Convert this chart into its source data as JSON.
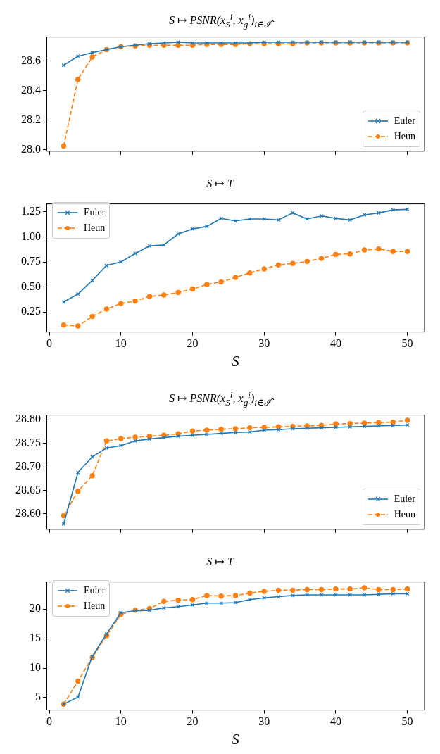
{
  "chart_data": [
    {
      "type": "line",
      "title": "S ↦ PSNR(x$_{S}$$^{i}$, x$_{g}$$^{i}$)$_{i∈ℐ̂}$",
      "x": [
        2,
        4,
        6,
        8,
        10,
        12,
        14,
        16,
        18,
        20,
        22,
        24,
        26,
        28,
        30,
        32,
        34,
        36,
        38,
        40,
        42,
        44,
        46,
        48,
        50
      ],
      "xlim": [
        -0.4,
        52.4
      ],
      "xticks": [
        0,
        10,
        20,
        30,
        40,
        50
      ],
      "ylim": [
        27.99,
        28.76
      ],
      "yticks": [
        {
          "value": 28.0,
          "label": "28.0"
        },
        {
          "value": 28.2,
          "label": "28.2"
        },
        {
          "value": 28.4,
          "label": "28.4"
        },
        {
          "value": 28.6,
          "label": "28.6"
        }
      ],
      "tick_labels": "y",
      "legend": "bottom right",
      "series": [
        {
          "name": "Euler",
          "color": "#1f77b4",
          "marker": "cross",
          "line_style": "solid",
          "values": [
            28.57,
            28.63,
            28.655,
            28.675,
            28.695,
            28.705,
            28.715,
            28.72,
            28.725,
            28.72,
            28.72,
            28.72,
            28.72,
            28.72,
            28.725,
            28.725,
            28.725,
            28.725,
            28.725,
            28.725,
            28.725,
            28.725,
            28.725,
            28.725,
            28.725
          ]
        },
        {
          "name": "Heun",
          "color": "#ff7f0e",
          "marker": "circle",
          "line_style": "dashed",
          "values": [
            28.025,
            28.475,
            28.625,
            28.675,
            28.695,
            28.7,
            28.705,
            28.705,
            28.705,
            28.705,
            28.71,
            28.71,
            28.71,
            28.715,
            28.715,
            28.715,
            28.715,
            28.72,
            28.72,
            28.72,
            28.72,
            28.72,
            28.72,
            28.72,
            28.72
          ]
        }
      ]
    },
    {
      "type": "line",
      "title": "S ↦ T",
      "xlabel": "S",
      "x": [
        2,
        4,
        6,
        8,
        10,
        12,
        14,
        16,
        18,
        20,
        22,
        24,
        26,
        28,
        30,
        32,
        34,
        36,
        38,
        40,
        42,
        44,
        46,
        48,
        50
      ],
      "xlim": [
        -0.4,
        52.4
      ],
      "xticks": [
        0,
        10,
        20,
        30,
        40,
        50
      ],
      "ylim": [
        0.05,
        1.33
      ],
      "yticks": [
        {
          "value": 0.25,
          "label": "0.25"
        },
        {
          "value": 0.5,
          "label": "0.50"
        },
        {
          "value": 0.75,
          "label": "0.75"
        },
        {
          "value": 1.0,
          "label": "1.00"
        },
        {
          "value": 1.25,
          "label": "1.25"
        }
      ],
      "legend": "top left",
      "series": [
        {
          "name": "Euler",
          "color": "#1f77b4",
          "marker": "cross",
          "line_style": "solid",
          "values": [
            0.35,
            0.43,
            0.565,
            0.715,
            0.75,
            0.835,
            0.91,
            0.92,
            1.03,
            1.08,
            1.105,
            1.185,
            1.16,
            1.18,
            1.18,
            1.17,
            1.24,
            1.18,
            1.21,
            1.185,
            1.17,
            1.22,
            1.24,
            1.27,
            1.275
          ]
        },
        {
          "name": "Heun",
          "color": "#ff7f0e",
          "marker": "circle",
          "line_style": "dashed",
          "values": [
            0.12,
            0.11,
            0.205,
            0.28,
            0.335,
            0.36,
            0.405,
            0.42,
            0.445,
            0.48,
            0.525,
            0.55,
            0.595,
            0.64,
            0.68,
            0.72,
            0.735,
            0.755,
            0.785,
            0.825,
            0.83,
            0.87,
            0.88,
            0.855,
            0.855
          ]
        }
      ]
    },
    {
      "type": "line",
      "title": "S ↦ PSNR(x$_{S}$$^{i}$, x$_{g}$$^{i}$)$_{i∈ℐ̂}$",
      "x": [
        2,
        4,
        6,
        8,
        10,
        12,
        14,
        16,
        18,
        20,
        22,
        24,
        26,
        28,
        30,
        32,
        34,
        36,
        38,
        40,
        42,
        44,
        46,
        48,
        50
      ],
      "xlim": [
        -0.4,
        52.4
      ],
      "xticks": [
        0,
        10,
        20,
        30,
        40,
        50
      ],
      "ylim": [
        28.567,
        28.81
      ],
      "yticks": [
        {
          "value": 28.6,
          "label": "28.60"
        },
        {
          "value": 28.65,
          "label": "28.65"
        },
        {
          "value": 28.7,
          "label": "28.70"
        },
        {
          "value": 28.75,
          "label": "28.75"
        },
        {
          "value": 28.8,
          "label": "28.80"
        }
      ],
      "tick_labels": "y",
      "legend": "bottom right",
      "series": [
        {
          "name": "Euler",
          "color": "#1f77b4",
          "marker": "cross",
          "line_style": "solid",
          "values": [
            28.578,
            28.688,
            28.721,
            28.74,
            28.745,
            28.755,
            28.759,
            28.762,
            28.765,
            28.767,
            28.769,
            28.771,
            28.773,
            28.774,
            28.778,
            28.779,
            28.781,
            28.782,
            28.783,
            28.784,
            28.785,
            28.786,
            28.787,
            28.788,
            28.789
          ]
        },
        {
          "name": "Heun",
          "color": "#ff7f0e",
          "marker": "circle",
          "line_style": "dashed",
          "values": [
            28.596,
            28.648,
            28.681,
            28.755,
            28.76,
            28.763,
            28.765,
            28.767,
            28.77,
            28.776,
            28.778,
            28.78,
            28.781,
            28.783,
            28.784,
            28.785,
            28.786,
            28.787,
            28.788,
            28.791,
            28.792,
            28.793,
            28.794,
            28.795,
            28.799
          ]
        }
      ]
    },
    {
      "type": "line",
      "title": "S ↦ T",
      "xlabel": "S",
      "x": [
        2,
        4,
        6,
        8,
        10,
        12,
        14,
        16,
        18,
        20,
        22,
        24,
        26,
        28,
        30,
        32,
        34,
        36,
        38,
        40,
        42,
        44,
        46,
        48,
        50
      ],
      "xlim": [
        -0.4,
        52.4
      ],
      "xticks": [
        0,
        10,
        20,
        30,
        40,
        50
      ],
      "ylim": [
        2.9,
        24.6
      ],
      "yticks": [
        5,
        10,
        15,
        20
      ],
      "legend": "top left",
      "series": [
        {
          "name": "Euler",
          "color": "#1f77b4",
          "marker": "cross",
          "line_style": "solid",
          "values": [
            3.9,
            5.1,
            12.0,
            15.8,
            19.4,
            19.7,
            19.8,
            20.2,
            20.4,
            20.7,
            21.0,
            21.0,
            21.1,
            21.6,
            21.9,
            22.1,
            22.3,
            22.4,
            22.4,
            22.4,
            22.4,
            22.4,
            22.5,
            22.6,
            22.6
          ]
        },
        {
          "name": "Heun",
          "color": "#ff7f0e",
          "marker": "circle",
          "line_style": "dashed",
          "values": [
            3.9,
            7.8,
            11.8,
            15.5,
            19.1,
            19.8,
            20.1,
            21.3,
            21.5,
            21.6,
            22.3,
            22.2,
            22.3,
            22.7,
            23.0,
            23.2,
            23.2,
            23.3,
            23.3,
            23.4,
            23.4,
            23.6,
            23.3,
            23.3,
            23.4
          ]
        }
      ]
    }
  ]
}
